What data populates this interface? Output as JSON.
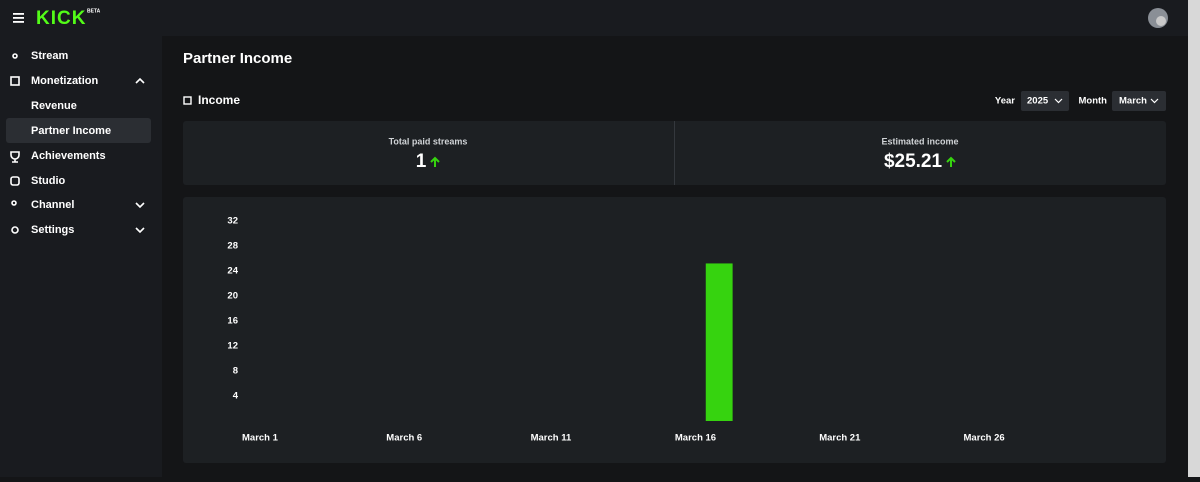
{
  "header": {
    "logo": "KICK",
    "badge": "BETA"
  },
  "sidebar": [
    "Stream",
    "Monetization",
    "Revenue",
    "Partner Income",
    "Achievements",
    "Studio",
    "Channel",
    "Settings"
  ],
  "page": {
    "title": "Partner Income",
    "section": "Income",
    "year_label": "Year",
    "year": "2025",
    "month_label": "Month",
    "month": "March"
  },
  "stats": [
    {
      "label": "Total paid streams",
      "value": "1"
    },
    {
      "label": "Estimated income",
      "value": "$25.21"
    }
  ],
  "chart_data": {
    "type": "bar",
    "categories": [
      "March 1",
      null,
      null,
      null,
      null,
      "March 6",
      null,
      null,
      null,
      null,
      "March 11",
      null,
      null,
      null,
      null,
      "March 16",
      null,
      null,
      null,
      null,
      "March 21",
      null,
      null,
      null,
      null,
      "March 26",
      null,
      null,
      null,
      null,
      null
    ],
    "values": [
      0,
      0,
      0,
      0,
      0,
      0,
      0,
      0,
      0,
      0,
      0,
      0,
      0,
      0,
      0,
      0,
      25.21,
      0,
      0,
      0,
      0,
      0,
      0,
      0,
      0,
      0,
      0,
      0,
      0,
      0,
      0
    ],
    "color": "#36d30f",
    "ylim": [
      0,
      32
    ],
    "yticks": [
      4,
      8,
      12,
      16,
      20,
      24,
      28,
      32
    ],
    "grid": false
  }
}
